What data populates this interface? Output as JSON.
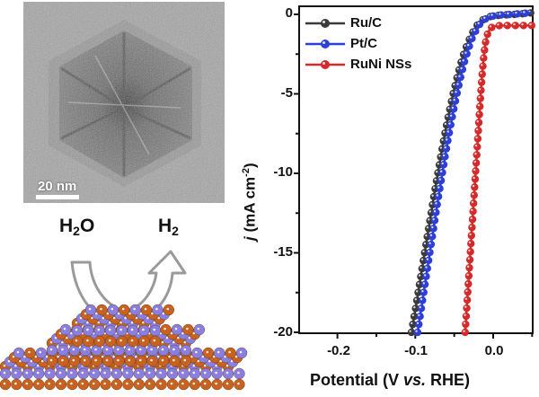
{
  "tem_panel": {
    "scale_bar_label": "20 nm",
    "description": "TEM image of hexagonal RuNi nanosheet"
  },
  "schematic": {
    "reactant": "H2O",
    "reactant_main": "H",
    "reactant_sub": "2",
    "reactant_tail": "O",
    "product": "H2",
    "product_main": "H",
    "product_sub": "2",
    "atom_colors": {
      "ru": "#c8621e",
      "ni": "#8a7fe0"
    },
    "arrow_color": "#9a9a9a"
  },
  "chart_data": {
    "type": "line",
    "title": "",
    "xlabel": "Potential (V vs. RHE)",
    "xlabel_parts": {
      "pre": "Potential (V ",
      "italic": "vs.",
      "post": " RHE)"
    },
    "ylabel": "j (mA cm-2)",
    "ylabel_parts": {
      "italic": "j",
      "pre": " (mA cm",
      "sup": "-2",
      "post": ")"
    },
    "xlim": [
      -0.25,
      0.05
    ],
    "ylim": [
      -20,
      0.5
    ],
    "xticks": [
      -0.2,
      -0.1,
      0.0
    ],
    "xtick_labels": [
      "-0.2",
      "-0.1",
      "0.0"
    ],
    "yticks": [
      0,
      -5,
      -10,
      -15,
      -20
    ],
    "ytick_labels": [
      "0",
      "-5",
      "-10",
      "-15",
      "-20"
    ],
    "grid": false,
    "legend_position": "upper left",
    "series": [
      {
        "name": "Ru/C",
        "color": "#3a3a3a",
        "x": [
          -0.105,
          -0.1,
          -0.095,
          -0.09,
          -0.085,
          -0.08,
          -0.075,
          -0.07,
          -0.065,
          -0.06,
          -0.055,
          -0.05,
          -0.045,
          -0.04,
          -0.035,
          -0.03,
          -0.025,
          -0.02,
          -0.015,
          -0.01,
          -0.005,
          0.0,
          0.01,
          0.02,
          0.03,
          0.04,
          0.05
        ],
        "y": [
          -20.0,
          -18.6,
          -17.1,
          -15.6,
          -14.1,
          -12.6,
          -11.1,
          -9.7,
          -8.3,
          -7.0,
          -5.8,
          -4.7,
          -3.7,
          -2.8,
          -2.1,
          -1.5,
          -1.0,
          -0.65,
          -0.4,
          -0.25,
          -0.15,
          -0.1,
          -0.05,
          -0.02,
          0.0,
          0.05,
          0.1
        ]
      },
      {
        "name": "Pt/C",
        "color": "#2d3fd6",
        "x": [
          -0.097,
          -0.092,
          -0.087,
          -0.082,
          -0.077,
          -0.072,
          -0.067,
          -0.062,
          -0.057,
          -0.052,
          -0.047,
          -0.042,
          -0.037,
          -0.032,
          -0.027,
          -0.022,
          -0.017,
          -0.012,
          -0.007,
          -0.002,
          0.005,
          0.015,
          0.025,
          0.035,
          0.05
        ],
        "y": [
          -20.0,
          -18.4,
          -16.8,
          -15.2,
          -13.6,
          -12.0,
          -10.5,
          -9.0,
          -7.6,
          -6.3,
          -5.1,
          -4.0,
          -3.0,
          -2.2,
          -1.5,
          -1.0,
          -0.6,
          -0.35,
          -0.2,
          -0.12,
          -0.06,
          -0.02,
          0.0,
          0.05,
          0.1
        ]
      },
      {
        "name": "RuNi NSs",
        "color": "#d42a2a",
        "x": [
          -0.036,
          -0.034,
          -0.032,
          -0.03,
          -0.028,
          -0.026,
          -0.024,
          -0.022,
          -0.02,
          -0.018,
          -0.016,
          -0.014,
          -0.012,
          -0.01,
          -0.007,
          -0.004,
          0.0,
          0.01,
          0.02,
          0.03,
          0.05
        ],
        "y": [
          -20.0,
          -18.5,
          -17.0,
          -15.5,
          -14.0,
          -12.5,
          -11.0,
          -9.5,
          -8.0,
          -6.5,
          -5.0,
          -3.7,
          -2.6,
          -1.8,
          -1.2,
          -0.9,
          -0.75,
          -0.7,
          -0.7,
          -0.7,
          -0.7
        ]
      }
    ]
  }
}
